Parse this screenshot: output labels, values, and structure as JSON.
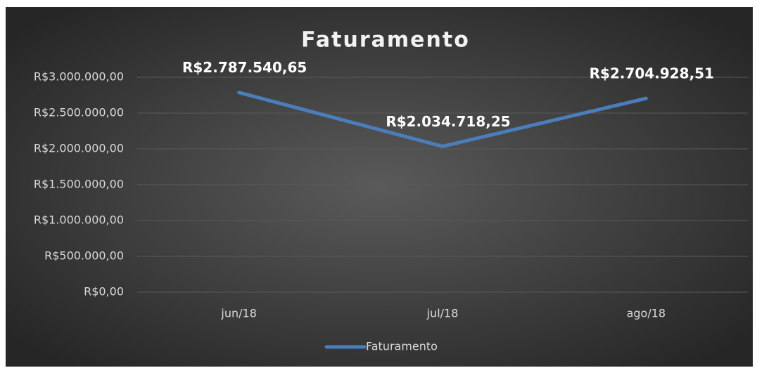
{
  "chart_data": {
    "type": "line",
    "title": "Faturamento",
    "categories": [
      "jun/18",
      "jul/18",
      "ago/18"
    ],
    "series": [
      {
        "name": "Faturamento",
        "color": "#4a7ebb",
        "values": [
          2787540.65,
          2034718.25,
          2704928.51
        ],
        "value_labels": [
          "R$2.787.540,65",
          "R$2.034.718,25",
          "R$2.704.928,51"
        ]
      }
    ],
    "ylim": [
      0,
      3000000
    ],
    "yticks": [
      {
        "value": 0,
        "label": "R$0,00"
      },
      {
        "value": 500000,
        "label": "R$500.000,00"
      },
      {
        "value": 1000000,
        "label": "R$1.000.000,00"
      },
      {
        "value": 1500000,
        "label": "R$1.500.000,00"
      },
      {
        "value": 2000000,
        "label": "R$2.000.000,00"
      },
      {
        "value": 2500000,
        "label": "R$2.500.000,00"
      },
      {
        "value": 3000000,
        "label": "R$3.000.000,00"
      }
    ],
    "grid": true,
    "legend": "bottom"
  }
}
